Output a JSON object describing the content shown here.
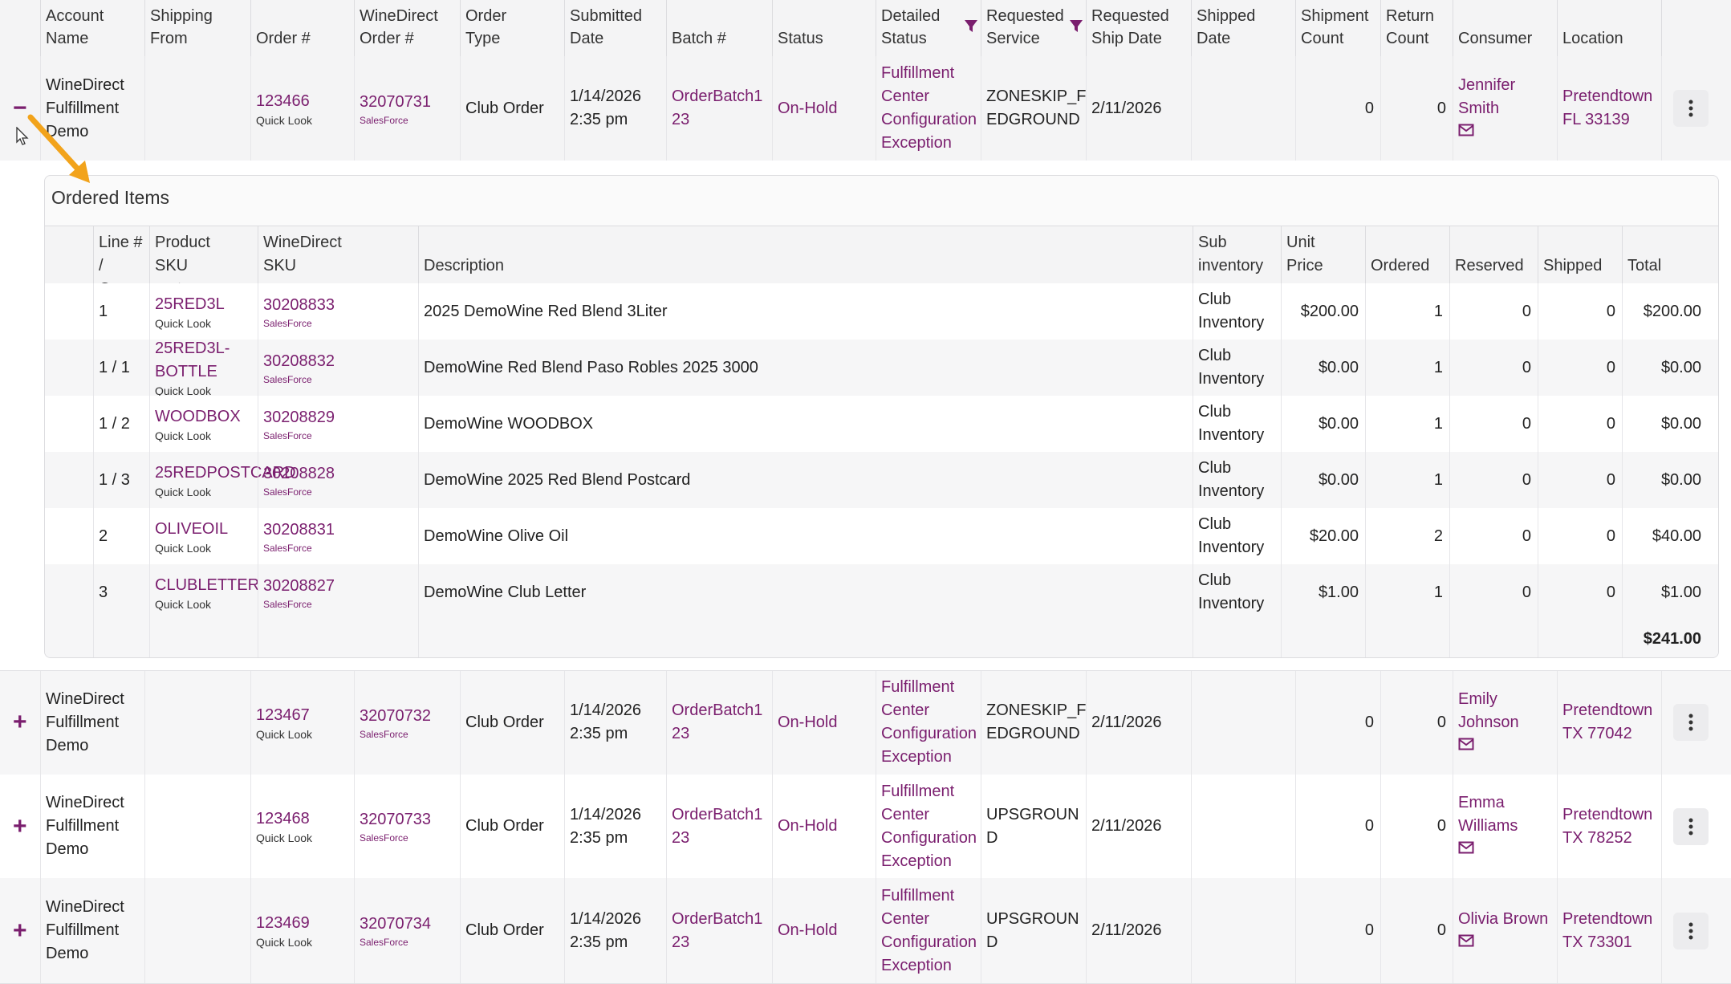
{
  "columns": [
    "Account Name",
    "Shipping From",
    "Order #",
    "WineDirect Order #",
    "Order Type",
    "Submitted Date",
    "Batch #",
    "Status",
    "Detailed Status",
    "Requested Service",
    "Requested Ship Date",
    "Shipped Date",
    "Shipment Count",
    "Return Count",
    "Consumer",
    "Location"
  ],
  "columns_split": [
    [
      "Account",
      "Name"
    ],
    [
      "Shipping",
      "From"
    ],
    [
      "",
      "Order #"
    ],
    [
      "WineDirect",
      "Order #"
    ],
    [
      "Order",
      "Type"
    ],
    [
      "Submitted",
      "Date"
    ],
    [
      "",
      "Batch #"
    ],
    [
      "",
      "Status"
    ],
    [
      "Detailed",
      "Status"
    ],
    [
      "Requested",
      "Service"
    ],
    [
      "Requested",
      "Ship Date"
    ],
    [
      "Shipped",
      "Date"
    ],
    [
      "Shipment",
      "Count"
    ],
    [
      "Return",
      "Count"
    ],
    [
      "",
      "Consumer"
    ],
    [
      "",
      "Location"
    ]
  ],
  "icons": {
    "filter": "filter-funnel-icon",
    "expand": "plus-icon",
    "collapse": "minus-icon",
    "menu": "kebab-menu-icon",
    "mail": "mail-icon",
    "cursor": "mouse-cursor-icon",
    "arrow": "annotation-arrow-icon"
  },
  "colors": {
    "accent": "#7a1e6e",
    "arrow": "#f2a31b",
    "header_bg": "#f4f4f5"
  },
  "orders": [
    {
      "toggle": "−",
      "account": [
        "WineDirect",
        "Fulfillment",
        "Demo"
      ],
      "order_no": "123466",
      "quick_look": "Quick Look",
      "wd_order": "32070731",
      "salesforce": "SalesForce",
      "type": "Club Order",
      "submitted": [
        "1/14/2026",
        "2:35 pm"
      ],
      "batch": [
        "OrderBatch1",
        "23"
      ],
      "status": "On-Hold",
      "detailed": [
        "Fulfillment",
        "Center",
        "Configuration",
        "Exception"
      ],
      "service": [
        "ZONESKIP_F",
        "EDGROUND"
      ],
      "ship_date": "2/11/2026",
      "shipped_date": "",
      "shipment_count": "0",
      "return_count": "0",
      "consumer": [
        "Jennifer",
        "Smith"
      ],
      "location": [
        "Pretendtown",
        "FL 33139"
      ]
    },
    {
      "toggle": "+",
      "account": [
        "WineDirect",
        "Fulfillment",
        "Demo"
      ],
      "order_no": "123467",
      "quick_look": "Quick Look",
      "wd_order": "32070732",
      "salesforce": "SalesForce",
      "type": "Club Order",
      "submitted": [
        "1/14/2026",
        "2:35 pm"
      ],
      "batch": [
        "OrderBatch1",
        "23"
      ],
      "status": "On-Hold",
      "detailed": [
        "Fulfillment",
        "Center",
        "Configuration",
        "Exception"
      ],
      "service": [
        "ZONESKIP_F",
        "EDGROUND"
      ],
      "ship_date": "2/11/2026",
      "shipped_date": "",
      "shipment_count": "0",
      "return_count": "0",
      "consumer": [
        "Emily",
        "Johnson"
      ],
      "location": [
        "Pretendtown",
        "TX 77042"
      ]
    },
    {
      "toggle": "+",
      "account": [
        "WineDirect",
        "Fulfillment",
        "Demo"
      ],
      "order_no": "123468",
      "quick_look": "Quick Look",
      "wd_order": "32070733",
      "salesforce": "SalesForce",
      "type": "Club Order",
      "submitted": [
        "1/14/2026",
        "2:35 pm"
      ],
      "batch": [
        "OrderBatch1",
        "23"
      ],
      "status": "On-Hold",
      "detailed": [
        "Fulfillment",
        "Center",
        "Configuration",
        "Exception"
      ],
      "service": [
        "UPSGROUN",
        "D"
      ],
      "ship_date": "2/11/2026",
      "shipped_date": "",
      "shipment_count": "0",
      "return_count": "0",
      "consumer": [
        "Emma",
        "Williams"
      ],
      "location": [
        "Pretendtown",
        "TX 78252"
      ]
    },
    {
      "toggle": "+",
      "account": [
        "WineDirect",
        "Fulfillment",
        "Demo"
      ],
      "order_no": "123469",
      "quick_look": "Quick Look",
      "wd_order": "32070734",
      "salesforce": "SalesForce",
      "type": "Club Order",
      "submitted": [
        "1/14/2026",
        "2:35 pm"
      ],
      "batch": [
        "OrderBatch1",
        "23"
      ],
      "status": "On-Hold",
      "detailed": [
        "Fulfillment",
        "Center",
        "Configuration",
        "Exception"
      ],
      "service": [
        "UPSGROUN",
        "D"
      ],
      "ship_date": "2/11/2026",
      "shipped_date": "",
      "shipment_count": "0",
      "return_count": "0",
      "consumer": [
        "Olivia Brown"
      ],
      "location": [
        "Pretendtown",
        "TX 73301"
      ]
    }
  ],
  "ordered_items": {
    "title": "Ordered Items",
    "columns": [
      [
        "Line # /",
        "Component #"
      ],
      [
        "Product",
        "SKU"
      ],
      [
        "WineDirect",
        "SKU"
      ],
      [
        "",
        "Description"
      ],
      [
        "Sub",
        "inventory"
      ],
      [
        "Unit",
        "Price"
      ],
      [
        "",
        "Ordered"
      ],
      [
        "",
        "Reserved"
      ],
      [
        "",
        "Shipped"
      ],
      [
        "",
        "Total"
      ]
    ],
    "rows": [
      {
        "line": "1",
        "sku": "25RED3L",
        "quick_look": "Quick Look",
        "wd_sku": "30208833",
        "salesforce": "SalesForce",
        "description": "2025 DemoWine Red Blend 3Liter",
        "subinv": [
          "Club",
          "Inventory"
        ],
        "unit_price": "$200.00",
        "ordered": "1",
        "reserved": "0",
        "shipped": "0",
        "total": "$200.00"
      },
      {
        "line": "1 / 1",
        "sku": "25RED3L-BOTTLE",
        "quick_look": "Quick Look",
        "wd_sku": "30208832",
        "salesforce": "SalesForce",
        "description": "DemoWine Red Blend Paso Robles 2025 3000",
        "subinv": [
          "Club",
          "Inventory"
        ],
        "unit_price": "$0.00",
        "ordered": "1",
        "reserved": "0",
        "shipped": "0",
        "total": "$0.00"
      },
      {
        "line": "1 / 2",
        "sku": "WOODBOX",
        "quick_look": "Quick Look",
        "wd_sku": "30208829",
        "salesforce": "SalesForce",
        "description": "DemoWine WOODBOX",
        "subinv": [
          "Club",
          "Inventory"
        ],
        "unit_price": "$0.00",
        "ordered": "1",
        "reserved": "0",
        "shipped": "0",
        "total": "$0.00"
      },
      {
        "line": "1 / 3",
        "sku": "25REDPOSTCARD",
        "quick_look": "Quick Look",
        "wd_sku": "30208828",
        "salesforce": "SalesForce",
        "description": "DemoWine 2025 Red Blend Postcard",
        "subinv": [
          "Club",
          "Inventory"
        ],
        "unit_price": "$0.00",
        "ordered": "1",
        "reserved": "0",
        "shipped": "0",
        "total": "$0.00"
      },
      {
        "line": "2",
        "sku": "OLIVEOIL",
        "quick_look": "Quick Look",
        "wd_sku": "30208831",
        "salesforce": "SalesForce",
        "description": "DemoWine Olive Oil",
        "subinv": [
          "Club",
          "Inventory"
        ],
        "unit_price": "$20.00",
        "ordered": "2",
        "reserved": "0",
        "shipped": "0",
        "total": "$40.00"
      },
      {
        "line": "3",
        "sku": "CLUBLETTER",
        "quick_look": "Quick Look",
        "wd_sku": "30208827",
        "salesforce": "SalesForce",
        "description": "DemoWine Club Letter",
        "subinv": [
          "Club",
          "Inventory"
        ],
        "unit_price": "$1.00",
        "ordered": "1",
        "reserved": "0",
        "shipped": "0",
        "total": "$1.00"
      }
    ],
    "grand_total": "$241.00"
  }
}
